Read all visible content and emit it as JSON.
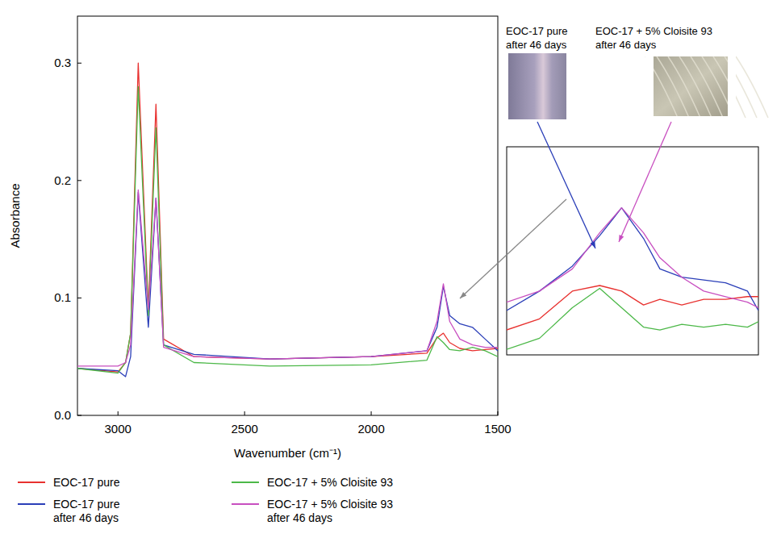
{
  "chart_data": [
    {
      "type": "line",
      "x_label": "Wavenumber (cm⁻¹)",
      "y_label": "Absorbance",
      "x": [
        3160,
        3000,
        2970,
        2950,
        2920,
        2880,
        2850,
        2820,
        2700,
        2400,
        2000,
        1780,
        1740,
        1715,
        1690,
        1650,
        1600,
        1550,
        1500
      ],
      "xlim": [
        3160,
        1500
      ],
      "xticks": [
        3000,
        2500,
        2000,
        1500
      ],
      "ylim": [
        0,
        0.34
      ],
      "yticks": [
        {
          "value": 0,
          "label": "0.0"
        },
        0.1,
        0.2,
        0.3
      ],
      "grid": false,
      "legend": "bottom",
      "series": [
        {
          "name": "EOC-17 pure",
          "color": "#e8312f",
          "values": [
            0.04,
            0.037,
            0.045,
            0.07,
            0.3,
            0.09,
            0.265,
            0.065,
            0.05,
            0.048,
            0.05,
            0.053,
            0.066,
            0.07,
            0.062,
            0.057,
            0.055,
            0.056,
            0.057
          ]
        },
        {
          "name": "EOC-17 pure after 46 days",
          "color": "#2a3eb8",
          "values": [
            0.04,
            0.038,
            0.033,
            0.05,
            0.19,
            0.075,
            0.185,
            0.06,
            0.052,
            0.048,
            0.05,
            0.055,
            0.075,
            0.11,
            0.085,
            0.078,
            0.075,
            0.065,
            0.055
          ]
        },
        {
          "name": "EOC-17 + 5% Cloisite 93",
          "color": "#4cb848",
          "values": [
            0.04,
            0.036,
            0.045,
            0.07,
            0.28,
            0.085,
            0.245,
            0.06,
            0.045,
            0.042,
            0.043,
            0.047,
            0.067,
            0.062,
            0.056,
            0.055,
            0.058,
            0.055,
            0.05
          ]
        },
        {
          "name": "EOC-17 + 5% Cloisite 93 after 46 days",
          "color": "#c84fc0",
          "values": [
            0.042,
            0.042,
            0.045,
            0.06,
            0.192,
            0.09,
            0.185,
            0.058,
            0.05,
            0.048,
            0.05,
            0.055,
            0.08,
            0.112,
            0.08,
            0.065,
            0.06,
            0.058,
            0.058
          ]
        }
      ]
    },
    {
      "type": "line",
      "tick_labels": false,
      "x": [
        1820,
        1790,
        1760,
        1735,
        1715,
        1695,
        1680,
        1660,
        1640,
        1620,
        1600,
        1590
      ],
      "xlim": [
        1820,
        1590
      ],
      "ylim": [
        0.05,
        0.125
      ],
      "annotations": [
        "EOC-17 pure after 46 days",
        "EOC-17 + 5% Cloisite 93 after 46 days"
      ],
      "series": [
        {
          "color": "#e8312f",
          "values": [
            0.059,
            0.063,
            0.073,
            0.075,
            0.073,
            0.068,
            0.07,
            0.068,
            0.07,
            0.07,
            0.071,
            0.071
          ]
        },
        {
          "color": "#2a3eb8",
          "values": [
            0.066,
            0.073,
            0.082,
            0.093,
            0.103,
            0.092,
            0.081,
            0.078,
            0.077,
            0.076,
            0.073,
            0.066
          ]
        },
        {
          "color": "#4cb848",
          "values": [
            0.052,
            0.056,
            0.067,
            0.074,
            0.067,
            0.06,
            0.059,
            0.061,
            0.06,
            0.061,
            0.06,
            0.062
          ]
        },
        {
          "color": "#c84fc0",
          "values": [
            0.069,
            0.073,
            0.081,
            0.094,
            0.103,
            0.094,
            0.085,
            0.078,
            0.073,
            0.071,
            0.069,
            0.067
          ]
        }
      ]
    }
  ]
}
